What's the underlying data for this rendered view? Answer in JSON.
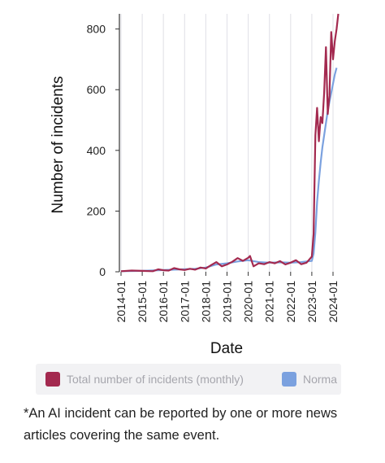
{
  "chart_data": {
    "type": "line",
    "xlabel": "Date",
    "ylabel": "Number of incidents",
    "ylim": [
      0,
      850
    ],
    "yticks": [
      0,
      200,
      400,
      600,
      800
    ],
    "xticks": [
      "2014-01",
      "2015-01",
      "2016-01",
      "2017-01",
      "2018-01",
      "2019-01",
      "2020-01",
      "2021-01",
      "2022-01",
      "2023-01",
      "2024-01"
    ],
    "grid": "vertical",
    "legend_position": "bottom",
    "series": [
      {
        "name": "Total number of incidents (monthly)",
        "color": "#a3294f",
        "x": [
          "2014-01",
          "2014-07",
          "2015-01",
          "2015-07",
          "2015-10",
          "2016-01",
          "2016-04",
          "2016-07",
          "2016-10",
          "2017-01",
          "2017-04",
          "2017-07",
          "2017-10",
          "2018-01",
          "2018-04",
          "2018-07",
          "2018-10",
          "2019-01",
          "2019-04",
          "2019-07",
          "2019-10",
          "2020-01",
          "2020-02",
          "2020-04",
          "2020-07",
          "2020-10",
          "2021-01",
          "2021-04",
          "2021-07",
          "2021-10",
          "2022-01",
          "2022-04",
          "2022-07",
          "2022-10",
          "2023-01",
          "2023-02",
          "2023-03",
          "2023-04",
          "2023-05",
          "2023-06",
          "2023-07",
          "2023-08",
          "2023-09",
          "2023-10",
          "2023-11",
          "2023-12",
          "2024-01",
          "2024-02",
          "2024-03",
          "2024-04"
        ],
        "values": [
          2,
          4,
          3,
          2,
          8,
          5,
          4,
          12,
          8,
          6,
          10,
          7,
          14,
          11,
          22,
          32,
          18,
          24,
          33,
          45,
          36,
          46,
          52,
          18,
          28,
          25,
          32,
          28,
          35,
          24,
          30,
          38,
          25,
          30,
          50,
          125,
          450,
          540,
          430,
          510,
          490,
          590,
          740,
          520,
          580,
          790,
          700,
          760,
          800,
          850
        ]
      },
      {
        "name": "Normalized",
        "color": "#7ba1df",
        "x": [
          "2014-01",
          "2015-01",
          "2015-10",
          "2016-07",
          "2017-07",
          "2018-01",
          "2018-07",
          "2019-01",
          "2019-07",
          "2020-01",
          "2020-07",
          "2021-01",
          "2021-07",
          "2022-01",
          "2022-07",
          "2023-01",
          "2023-02",
          "2023-03",
          "2023-04",
          "2023-05",
          "2023-06",
          "2023-07",
          "2023-08",
          "2023-09",
          "2023-10",
          "2023-11",
          "2023-12",
          "2024-01",
          "2024-02",
          "2024-03"
        ],
        "values": [
          2,
          3,
          5,
          7,
          10,
          14,
          24,
          28,
          34,
          38,
          32,
          30,
          31,
          30,
          32,
          36,
          60,
          130,
          230,
          300,
          360,
          410,
          450,
          490,
          530,
          560,
          590,
          620,
          650,
          672
        ]
      }
    ]
  },
  "legend": {
    "item1_label": "Total number of incidents (monthly)",
    "item1_color": "#a3294f",
    "item2_label": "Norma",
    "item2_color": "#7ba1df"
  },
  "footnote": "*An AI incident can be reported by one or more news articles covering the same event."
}
